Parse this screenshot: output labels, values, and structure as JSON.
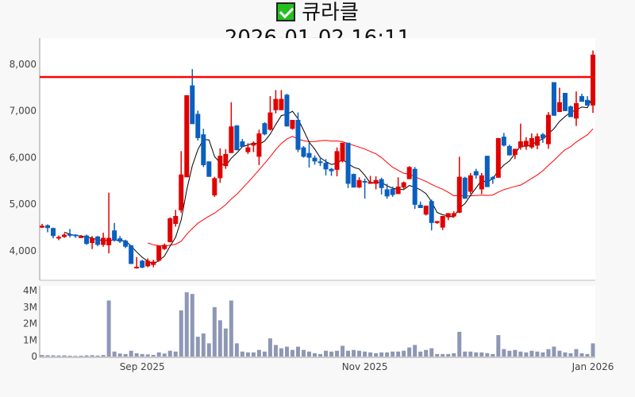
{
  "header": {
    "icon": "green-check-icon",
    "name": "큐라클",
    "datetime": "2026-01-02 16:11"
  },
  "chart_data": {
    "type": "candlestick",
    "title": "큐라클 2026-01-02 16:11",
    "colors": {
      "up": "#e00000",
      "down": "#0a5fbf",
      "ma_short": "#000000",
      "ma_long": "#ff0000",
      "resistance": "#ff0000",
      "volume": "#8e97b5"
    },
    "price_ylim": [
      3350,
      8545
    ],
    "price_ticks": [
      {
        "v": 4000,
        "label": "4,000"
      },
      {
        "v": 5000,
        "label": "5,000"
      },
      {
        "v": 6000,
        "label": "6,000"
      },
      {
        "v": 7000,
        "label": "7,000"
      },
      {
        "v": 8000,
        "label": "8,000"
      }
    ],
    "volume_ylim": [
      0,
      4290000
    ],
    "volume_ticks": [
      {
        "v": 0,
        "label": "0"
      },
      {
        "v": 1000000,
        "label": "1M"
      },
      {
        "v": 2000000,
        "label": "2M"
      },
      {
        "v": 3000000,
        "label": "3M"
      },
      {
        "v": 4000000,
        "label": "4M"
      }
    ],
    "x_ticks": [
      {
        "index": 18,
        "label": "Sep 2025"
      },
      {
        "index": 58,
        "label": "Nov 2025"
      },
      {
        "index": 99,
        "label": "Jan 2026"
      }
    ],
    "resistance_level": 7710,
    "ma_periods": [
      5,
      20
    ],
    "candles_format": [
      "open",
      "high",
      "low",
      "close",
      "volume"
    ],
    "candles": [
      [
        4480,
        4560,
        4470,
        4520,
        90000
      ],
      [
        4530,
        4550,
        4380,
        4470,
        80000
      ],
      [
        4470,
        4480,
        4250,
        4300,
        70000
      ],
      [
        4250,
        4310,
        4210,
        4280,
        60000
      ],
      [
        4280,
        4360,
        4260,
        4330,
        70000
      ],
      [
        4340,
        4450,
        4270,
        4320,
        50000
      ],
      [
        4330,
        4340,
        4260,
        4300,
        40000
      ],
      [
        4280,
        4320,
        4260,
        4290,
        50000
      ],
      [
        4310,
        4330,
        4110,
        4130,
        70000
      ],
      [
        4150,
        4300,
        4020,
        4250,
        80000
      ],
      [
        4290,
        4300,
        4080,
        4110,
        60000
      ],
      [
        4110,
        4370,
        4070,
        4260,
        90000
      ],
      [
        4100,
        5230,
        3930,
        4260,
        3400000
      ],
      [
        4420,
        4580,
        4180,
        4200,
        300000
      ],
      [
        4250,
        4300,
        4150,
        4180,
        180000
      ],
      [
        4200,
        4220,
        4040,
        4070,
        150000
      ],
      [
        4100,
        4100,
        3700,
        3700,
        350000
      ],
      [
        3620,
        3850,
        3600,
        3640,
        200000
      ],
      [
        3770,
        3790,
        3610,
        3620,
        150000
      ],
      [
        3650,
        3820,
        3630,
        3770,
        130000
      ],
      [
        3680,
        3790,
        3630,
        3750,
        100000
      ],
      [
        3770,
        4100,
        3750,
        4090,
        250000
      ],
      [
        4020,
        4140,
        4000,
        4110,
        180000
      ],
      [
        4170,
        4700,
        4160,
        4680,
        350000
      ],
      [
        4560,
        4860,
        4500,
        4730,
        300000
      ],
      [
        4850,
        6120,
        4800,
        5620,
        2800000
      ],
      [
        5560,
        7320,
        5560,
        7320,
        3900000
      ],
      [
        7530,
        7880,
        6720,
        6700,
        3800000
      ],
      [
        6920,
        6990,
        6350,
        6400,
        1200000
      ],
      [
        6480,
        6600,
        5780,
        5820,
        1400000
      ],
      [
        5900,
        5900,
        5570,
        5570,
        800000
      ],
      [
        5170,
        5570,
        5140,
        5540,
        3000000
      ],
      [
        5540,
        6180,
        5440,
        6020,
        2200000
      ],
      [
        5800,
        6160,
        5740,
        6060,
        1700000
      ],
      [
        6080,
        7170,
        6080,
        6650,
        3400000
      ],
      [
        6670,
        6680,
        6140,
        6140,
        800000
      ],
      [
        6330,
        6380,
        6210,
        6210,
        300000
      ],
      [
        6100,
        6290,
        6060,
        6200,
        250000
      ],
      [
        6240,
        6330,
        6100,
        6290,
        250000
      ],
      [
        6000,
        6580,
        5820,
        6500,
        400000
      ],
      [
        6720,
        6740,
        6460,
        6480,
        300000
      ],
      [
        6580,
        7300,
        6560,
        6950,
        1100000
      ],
      [
        7000,
        7430,
        6930,
        7240,
        700000
      ],
      [
        7000,
        7430,
        7000,
        7240,
        500000
      ],
      [
        7330,
        7350,
        6650,
        6650,
        600000
      ],
      [
        6600,
        6790,
        6580,
        6790,
        400000
      ],
      [
        6790,
        6950,
        6100,
        6150,
        600000
      ],
      [
        6200,
        6230,
        5980,
        6000,
        400000
      ],
      [
        6080,
        6300,
        5770,
        5980,
        300000
      ],
      [
        5980,
        6030,
        5830,
        5900,
        200000
      ],
      [
        5900,
        6000,
        5800,
        5870,
        150000
      ],
      [
        5870,
        5950,
        5600,
        5730,
        350000
      ],
      [
        5740,
        5760,
        5590,
        5690,
        300000
      ],
      [
        5720,
        6200,
        5580,
        6120,
        350000
      ],
      [
        5900,
        6300,
        5880,
        6300,
        650000
      ],
      [
        6300,
        6300,
        5330,
        5420,
        350000
      ],
      [
        5630,
        5640,
        5340,
        5340,
        400000
      ],
      [
        5340,
        5560,
        5330,
        5500,
        350000
      ],
      [
        5480,
        5530,
        5100,
        5450,
        300000
      ],
      [
        5420,
        5590,
        5420,
        5460,
        250000
      ],
      [
        5420,
        5580,
        5300,
        5500,
        200000
      ],
      [
        5520,
        5550,
        5190,
        5330,
        250000
      ],
      [
        5300,
        5420,
        5100,
        5150,
        250000
      ],
      [
        5310,
        5360,
        5140,
        5180,
        300000
      ],
      [
        5200,
        5560,
        5200,
        5360,
        300000
      ],
      [
        5340,
        5470,
        5310,
        5450,
        350000
      ],
      [
        5520,
        5800,
        5520,
        5780,
        550000
      ],
      [
        5740,
        5780,
        4880,
        4970,
        700000
      ],
      [
        4970,
        5040,
        4900,
        4900,
        300000
      ],
      [
        4760,
        4950,
        4740,
        4950,
        400000
      ],
      [
        5050,
        5080,
        4420,
        4580,
        500000
      ],
      [
        4580,
        4620,
        4560,
        4620,
        150000
      ],
      [
        4480,
        4730,
        4430,
        4730,
        150000
      ],
      [
        4700,
        4790,
        4640,
        4790,
        150000
      ],
      [
        4720,
        4830,
        4700,
        4790,
        200000
      ],
      [
        4800,
        6000,
        4790,
        5570,
        1500000
      ],
      [
        5550,
        5570,
        5100,
        5100,
        300000
      ],
      [
        5250,
        5650,
        5200,
        5600,
        300000
      ],
      [
        5690,
        5740,
        5530,
        5600,
        250000
      ],
      [
        5300,
        5650,
        5200,
        5600,
        250000
      ],
      [
        6020,
        6020,
        5350,
        5350,
        200000
      ],
      [
        5560,
        5580,
        5420,
        5520,
        150000
      ],
      [
        5550,
        6400,
        5550,
        6400,
        1300000
      ],
      [
        6430,
        6510,
        6220,
        6240,
        450000
      ],
      [
        6230,
        6260,
        6030,
        6030,
        350000
      ],
      [
        6040,
        6170,
        5950,
        6170,
        400000
      ],
      [
        6200,
        6710,
        6150,
        6330,
        300000
      ],
      [
        6230,
        6420,
        6150,
        6340,
        250000
      ],
      [
        6200,
        6500,
        6170,
        6400,
        350000
      ],
      [
        6240,
        6500,
        6160,
        6440,
        300000
      ],
      [
        6480,
        6510,
        6300,
        6390,
        250000
      ],
      [
        6270,
        6960,
        6170,
        6900,
        450000
      ],
      [
        7600,
        7600,
        6880,
        6880,
        600000
      ],
      [
        6960,
        7480,
        6960,
        7170,
        350000
      ],
      [
        7370,
        7370,
        6980,
        6980,
        250000
      ],
      [
        7080,
        7100,
        6850,
        6850,
        200000
      ],
      [
        6820,
        7400,
        6660,
        7150,
        450000
      ],
      [
        7300,
        7350,
        7180,
        7180,
        200000
      ],
      [
        7220,
        7300,
        7100,
        7100,
        150000
      ],
      [
        7100,
        8280,
        6940,
        8190,
        800000
      ]
    ]
  }
}
